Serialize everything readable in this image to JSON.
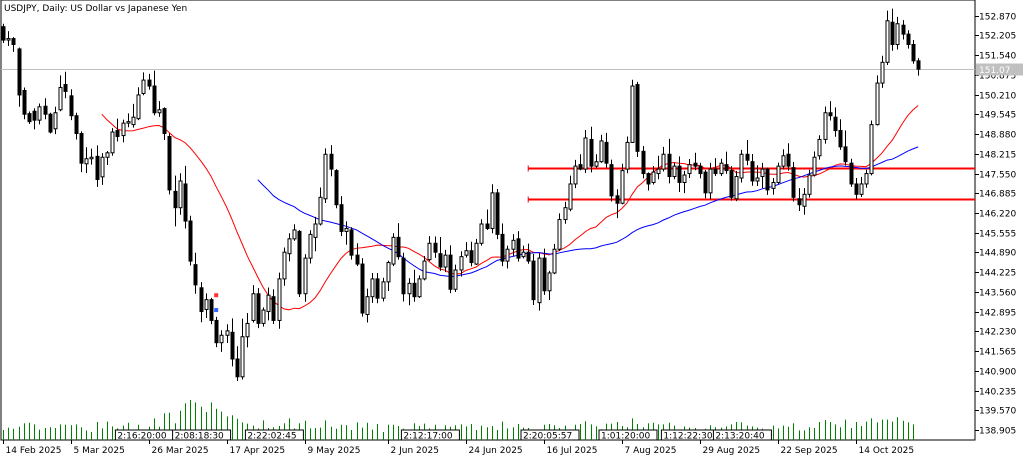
{
  "chart_data": {
    "type": "candlestick",
    "title": "USDJPY, Daily:  US Dollar vs Japanese Yen",
    "ylim": [
      138.57,
      153.4
    ],
    "y_ticks": [
      "152.870",
      "152.205",
      "151.540",
      "150.875",
      "150.210",
      "149.545",
      "148.880",
      "148.215",
      "147.550",
      "146.885",
      "146.220",
      "145.555",
      "144.890",
      "144.225",
      "143.560",
      "142.895",
      "142.230",
      "141.565",
      "140.900",
      "140.235",
      "139.570",
      "138.905"
    ],
    "x_labels": [
      "14 Feb 2025",
      "5 Mar 2025",
      "26 Mar 2025",
      "17 Apr 2025",
      "9 May 2025",
      "2 Jun 2025",
      "24 Jun 2025",
      "16 Jul 2025",
      "7 Aug 2025",
      "29 Aug 2025",
      "22 Sep 2025",
      "14 Oct 2025"
    ],
    "x_label_index": [
      0,
      13,
      28,
      43,
      58,
      74,
      89,
      104,
      119,
      134,
      149,
      164
    ],
    "current_price": "151.07",
    "time_badges": [
      "2:16:20:00",
      "2:08:18:30",
      "2:22:02:45",
      "2:12:17:00",
      "2:20:05:57",
      "1:01:20:00",
      "1:12:22:30",
      "2:13:20:40"
    ],
    "time_badge_index": [
      22,
      33,
      47,
      77,
      100,
      115,
      127,
      137
    ],
    "colors": {
      "ma_fast": "#ff0000",
      "ma_slow": "#0000ff",
      "sr_line": "#ff0000",
      "volume": "#008000",
      "grid": "#c0c0c0"
    },
    "support_resistance": [
      147.75,
      146.7
    ],
    "ohlc": [
      [
        152.5,
        152.6,
        151.95,
        152.05
      ],
      [
        152.05,
        152.35,
        151.85,
        152.1
      ],
      [
        152.1,
        152.15,
        151.65,
        151.9
      ],
      [
        151.75,
        151.8,
        149.8,
        150.2
      ],
      [
        150.35,
        150.45,
        149.38,
        149.55
      ],
      [
        149.57,
        149.64,
        149.22,
        149.3
      ],
      [
        149.65,
        149.75,
        149.04,
        149.35
      ],
      [
        149.35,
        149.91,
        149.21,
        149.8
      ],
      [
        149.82,
        150.09,
        149.38,
        149.55
      ],
      [
        149.55,
        149.6,
        148.9,
        148.95
      ],
      [
        149.06,
        149.8,
        148.88,
        149.6
      ],
      [
        149.7,
        150.86,
        149.65,
        150.45
      ],
      [
        150.55,
        150.98,
        150.09,
        150.32
      ],
      [
        150.17,
        150.39,
        149.35,
        149.5
      ],
      [
        149.5,
        149.6,
        148.7,
        148.9
      ],
      [
        148.9,
        148.97,
        147.6,
        147.9
      ],
      [
        147.88,
        148.44,
        147.57,
        148.05
      ],
      [
        148.05,
        148.39,
        147.85,
        148.1
      ],
      [
        148.13,
        148.5,
        147.1,
        147.35
      ],
      [
        147.44,
        148.24,
        147.17,
        148.1
      ],
      [
        148.1,
        148.31,
        147.84,
        148.25
      ],
      [
        148.25,
        149.08,
        148.15,
        148.95
      ],
      [
        149.0,
        149.4,
        148.63,
        148.8
      ],
      [
        148.83,
        149.37,
        148.6,
        149.25
      ],
      [
        149.25,
        149.58,
        149.11,
        149.3
      ],
      [
        149.2,
        149.9,
        149.1,
        149.45
      ],
      [
        149.4,
        150.46,
        149.35,
        150.2
      ],
      [
        150.25,
        150.96,
        150.19,
        150.7
      ],
      [
        150.7,
        150.91,
        150.38,
        150.5
      ],
      [
        150.5,
        151.02,
        149.51,
        149.6
      ],
      [
        149.6,
        149.99,
        149.46,
        149.7
      ],
      [
        149.74,
        149.78,
        148.68,
        148.9
      ],
      [
        148.8,
        148.9,
        146.85,
        147.0
      ],
      [
        146.95,
        147.48,
        145.77,
        146.4
      ],
      [
        146.4,
        147.56,
        146.16,
        147.3
      ],
      [
        147.2,
        147.81,
        145.7,
        145.95
      ],
      [
        145.95,
        146.13,
        144.45,
        144.6
      ],
      [
        144.48,
        144.88,
        143.5,
        143.8
      ],
      [
        143.7,
        143.89,
        142.54,
        142.9
      ],
      [
        142.97,
        143.51,
        142.68,
        143.3
      ],
      [
        143.3,
        143.36,
        142.47,
        142.6
      ],
      [
        142.6,
        142.72,
        141.7,
        141.85
      ],
      [
        141.85,
        142.27,
        141.54,
        142.1
      ],
      [
        142.1,
        142.47,
        141.84,
        142.25
      ],
      [
        142.2,
        142.67,
        141.05,
        141.3
      ],
      [
        141.3,
        141.73,
        140.56,
        140.7
      ],
      [
        140.7,
        142.66,
        140.61,
        142.05
      ],
      [
        142.05,
        142.85,
        141.69,
        142.5
      ],
      [
        142.6,
        143.79,
        142.53,
        143.5
      ],
      [
        143.5,
        143.69,
        142.34,
        142.5
      ],
      [
        142.5,
        143.04,
        142.39,
        142.95
      ],
      [
        142.9,
        143.71,
        142.6,
        143.45
      ],
      [
        143.4,
        143.65,
        142.48,
        142.6
      ],
      [
        142.6,
        144.21,
        142.32,
        144.0
      ],
      [
        144.0,
        145.06,
        143.77,
        144.9
      ],
      [
        144.85,
        145.54,
        144.59,
        145.35
      ],
      [
        145.35,
        145.84,
        145.28,
        145.65
      ],
      [
        145.6,
        145.65,
        143.39,
        143.5
      ],
      [
        143.5,
        144.83,
        143.23,
        144.7
      ],
      [
        144.7,
        145.64,
        144.52,
        145.5
      ],
      [
        145.4,
        146.09,
        144.93,
        145.85
      ],
      [
        145.85,
        147.08,
        145.8,
        146.75
      ],
      [
        146.7,
        148.4,
        146.56,
        148.2
      ],
      [
        148.2,
        148.51,
        147.46,
        147.7
      ],
      [
        147.65,
        147.7,
        146.38,
        146.5
      ],
      [
        146.5,
        146.79,
        145.44,
        145.6
      ],
      [
        145.6,
        145.94,
        145.15,
        145.7
      ],
      [
        145.65,
        145.74,
        144.65,
        144.8
      ],
      [
        144.8,
        145.2,
        144.43,
        144.5
      ],
      [
        144.5,
        144.7,
        142.73,
        142.85
      ],
      [
        142.8,
        143.67,
        142.53,
        143.4
      ],
      [
        143.4,
        144.2,
        143.19,
        144.0
      ],
      [
        144.0,
        144.2,
        143.18,
        143.35
      ],
      [
        143.35,
        144.04,
        143.24,
        143.9
      ],
      [
        143.9,
        144.61,
        143.59,
        144.55
      ],
      [
        144.5,
        145.54,
        144.43,
        145.4
      ],
      [
        145.4,
        145.88,
        144.65,
        144.75
      ],
      [
        144.7,
        144.88,
        143.24,
        143.5
      ],
      [
        143.5,
        144.02,
        143.11,
        143.85
      ],
      [
        143.85,
        144.31,
        143.23,
        143.4
      ],
      [
        143.4,
        144.12,
        143.36,
        144.0
      ],
      [
        144.0,
        144.77,
        143.95,
        144.6
      ],
      [
        144.65,
        145.44,
        144.6,
        145.2
      ],
      [
        145.2,
        145.43,
        144.71,
        144.9
      ],
      [
        144.85,
        145.41,
        144.27,
        144.4
      ],
      [
        144.4,
        144.98,
        144.23,
        144.8
      ],
      [
        144.8,
        145.13,
        143.52,
        143.65
      ],
      [
        143.65,
        144.48,
        143.56,
        144.3
      ],
      [
        144.3,
        144.93,
        144.08,
        144.75
      ],
      [
        144.8,
        145.24,
        144.72,
        144.95
      ],
      [
        144.95,
        145.25,
        144.42,
        144.55
      ],
      [
        144.5,
        145.35,
        144.47,
        145.2
      ],
      [
        145.2,
        146.01,
        145.12,
        145.85
      ],
      [
        145.85,
        146.34,
        145.65,
        145.7
      ],
      [
        145.7,
        147.19,
        145.54,
        146.9
      ],
      [
        146.9,
        147.03,
        145.34,
        145.5
      ],
      [
        145.5,
        145.87,
        144.43,
        144.6
      ],
      [
        144.6,
        145.12,
        144.35,
        145.0
      ],
      [
        145.0,
        145.51,
        144.77,
        145.3
      ],
      [
        145.35,
        145.61,
        144.58,
        144.7
      ],
      [
        144.75,
        145.12,
        144.69,
        144.9
      ],
      [
        144.9,
        145.19,
        144.51,
        144.6
      ],
      [
        144.6,
        144.84,
        143.12,
        143.3
      ],
      [
        143.2,
        144.86,
        142.93,
        144.7
      ],
      [
        144.7,
        145.02,
        143.46,
        143.6
      ],
      [
        143.6,
        144.27,
        143.29,
        144.2
      ],
      [
        144.2,
        145.18,
        144.16,
        145.0
      ],
      [
        145.0,
        146.21,
        144.94,
        146.0
      ],
      [
        146.0,
        146.6,
        145.86,
        146.4
      ],
      [
        146.35,
        147.48,
        146.28,
        147.2
      ],
      [
        147.2,
        148.01,
        147.06,
        147.8
      ],
      [
        147.85,
        148.2,
        147.66,
        147.7
      ],
      [
        147.7,
        149.02,
        147.57,
        148.75
      ],
      [
        148.7,
        149.13,
        147.59,
        147.8
      ],
      [
        147.8,
        148.2,
        147.72,
        147.95
      ],
      [
        147.95,
        148.86,
        147.91,
        148.65
      ],
      [
        148.6,
        148.92,
        147.75,
        147.9
      ],
      [
        147.85,
        148.02,
        146.61,
        146.8
      ],
      [
        146.8,
        147.02,
        146.05,
        146.55
      ],
      [
        146.55,
        147.88,
        146.51,
        147.65
      ],
      [
        147.7,
        148.8,
        147.56,
        148.6
      ],
      [
        148.6,
        150.71,
        148.58,
        150.5
      ],
      [
        150.55,
        150.64,
        148.11,
        148.3
      ],
      [
        148.3,
        148.48,
        147.39,
        147.55
      ],
      [
        147.55,
        147.59,
        146.98,
        147.2
      ],
      [
        147.25,
        147.8,
        147.18,
        147.6
      ],
      [
        147.55,
        148.15,
        147.36,
        147.7
      ],
      [
        147.7,
        148.45,
        147.62,
        148.2
      ],
      [
        148.2,
        148.72,
        147.22,
        147.45
      ],
      [
        147.45,
        147.92,
        147.36,
        147.8
      ],
      [
        147.8,
        148.13,
        146.93,
        147.25
      ],
      [
        147.25,
        147.64,
        146.89,
        147.5
      ],
      [
        147.55,
        148.04,
        147.4,
        147.85
      ],
      [
        147.9,
        148.25,
        147.66,
        147.8
      ],
      [
        147.8,
        147.91,
        147.39,
        147.55
      ],
      [
        147.6,
        147.67,
        146.72,
        146.9
      ],
      [
        146.9,
        147.91,
        146.68,
        147.7
      ],
      [
        147.7,
        148.07,
        147.47,
        147.55
      ],
      [
        147.55,
        148.05,
        147.47,
        147.9
      ],
      [
        147.85,
        148.29,
        147.54,
        147.65
      ],
      [
        147.65,
        147.8,
        146.64,
        146.75
      ],
      [
        146.7,
        147.64,
        146.62,
        147.45
      ],
      [
        147.4,
        148.35,
        147.25,
        148.2
      ],
      [
        148.2,
        148.68,
        147.83,
        148.0
      ],
      [
        147.95,
        148.21,
        147.14,
        147.3
      ],
      [
        147.3,
        147.83,
        147.13,
        147.4
      ],
      [
        147.45,
        147.91,
        147.06,
        147.7
      ],
      [
        147.7,
        147.75,
        146.83,
        147.0
      ],
      [
        147.05,
        147.4,
        146.84,
        147.25
      ],
      [
        147.25,
        147.92,
        147.19,
        147.8
      ],
      [
        147.8,
        148.37,
        147.69,
        148.15
      ],
      [
        148.2,
        148.57,
        147.65,
        147.8
      ],
      [
        147.75,
        147.94,
        146.61,
        146.75
      ],
      [
        146.7,
        147.06,
        146.29,
        146.5
      ],
      [
        146.45,
        147.06,
        146.16,
        146.85
      ],
      [
        146.85,
        147.68,
        146.74,
        147.5
      ],
      [
        147.5,
        148.3,
        147.45,
        148.1
      ],
      [
        148.15,
        148.84,
        148.02,
        148.7
      ],
      [
        148.7,
        149.81,
        148.56,
        149.6
      ],
      [
        149.6,
        149.99,
        149.34,
        149.5
      ],
      [
        149.45,
        149.78,
        148.79,
        149.0
      ],
      [
        149.0,
        149.38,
        148.35,
        148.45
      ],
      [
        148.45,
        149.0,
        147.82,
        147.95
      ],
      [
        147.9,
        148.05,
        147.1,
        147.2
      ],
      [
        147.2,
        147.4,
        146.68,
        146.85
      ],
      [
        146.85,
        147.44,
        146.76,
        147.2
      ],
      [
        147.2,
        147.68,
        147.07,
        147.55
      ],
      [
        147.55,
        149.34,
        147.49,
        149.2
      ],
      [
        149.2,
        150.86,
        149.17,
        150.6
      ],
      [
        150.6,
        151.52,
        150.44,
        151.3
      ],
      [
        151.3,
        153.04,
        151.21,
        152.7
      ],
      [
        152.65,
        153.11,
        151.69,
        151.9
      ],
      [
        151.9,
        152.83,
        151.73,
        152.6
      ],
      [
        152.55,
        152.72,
        152.07,
        152.25
      ],
      [
        152.25,
        152.38,
        151.76,
        151.9
      ],
      [
        151.9,
        152.05,
        151.25,
        151.35
      ],
      [
        151.35,
        151.44,
        150.85,
        151.07
      ]
    ],
    "volume": [
      0.25,
      0.31,
      0.28,
      0.33,
      0.42,
      0.43,
      0.39,
      0.26,
      0.3,
      0.32,
      0.3,
      0.39,
      0.38,
      0.37,
      0.39,
      0.32,
      0.24,
      0.2,
      0.45,
      0.29,
      0.46,
      0.34,
      0.29,
      0.36,
      0.43,
      0.23,
      0.38,
      0.2,
      0.33,
      0.54,
      0.33,
      0.67,
      0.68,
      0.42,
      0.73,
      0.92,
      1.0,
      0.94,
      0.83,
      0.7,
      0.94,
      0.78,
      0.71,
      0.59,
      0.62,
      0.53,
      0.44,
      0.41,
      0.36,
      0.29,
      0.49,
      0.3,
      0.32,
      0.35,
      0.42,
      0.54,
      0.29,
      0.42,
      0.48,
      0.29,
      0.3,
      0.31,
      0.49,
      0.33,
      0.28,
      0.38,
      0.37,
      0.25,
      0.44,
      0.31,
      0.43,
      0.26,
      0.4,
      0.2,
      0.38,
      0.38,
      0.35,
      0.28,
      0.24,
      0.42,
      0.35,
      0.41,
      0.29,
      0.38,
      0.26,
      0.37,
      0.33,
      0.37,
      0.39,
      0.34,
      0.4,
      0.25,
      0.36,
      0.32,
      0.35,
      0.25,
      0.46,
      0.29,
      0.32,
      0.4,
      0.31,
      0.3,
      0.26,
      0.24,
      0.38,
      0.4,
      0.37,
      0.3,
      0.36,
      0.26,
      0.38,
      0.4,
      0.47,
      0.39,
      0.34,
      0.27,
      0.41,
      0.41,
      0.45,
      0.35,
      0.32,
      0.54,
      0.4,
      0.32,
      0.42,
      0.43,
      0.39,
      0.39,
      0.43,
      0.36,
      0.25,
      0.34,
      0.31,
      0.3,
      0.26,
      0.28,
      0.37,
      0.32,
      0.31,
      0.34,
      0.39,
      0.45,
      0.44,
      0.36,
      0.34,
      0.31,
      0.28,
      0.24,
      0.36,
      0.29,
      0.36,
      0.33,
      0.42,
      0.24,
      0.24,
      0.32,
      0.3,
      0.45,
      0.5,
      0.45,
      0.39,
      0.32,
      0.51,
      0.3,
      0.45,
      0.35,
      0.46,
      0.54,
      0.44,
      0.51,
      0.51,
      0.46,
      0.57,
      0.48,
      0.44,
      0.39
    ]
  }
}
